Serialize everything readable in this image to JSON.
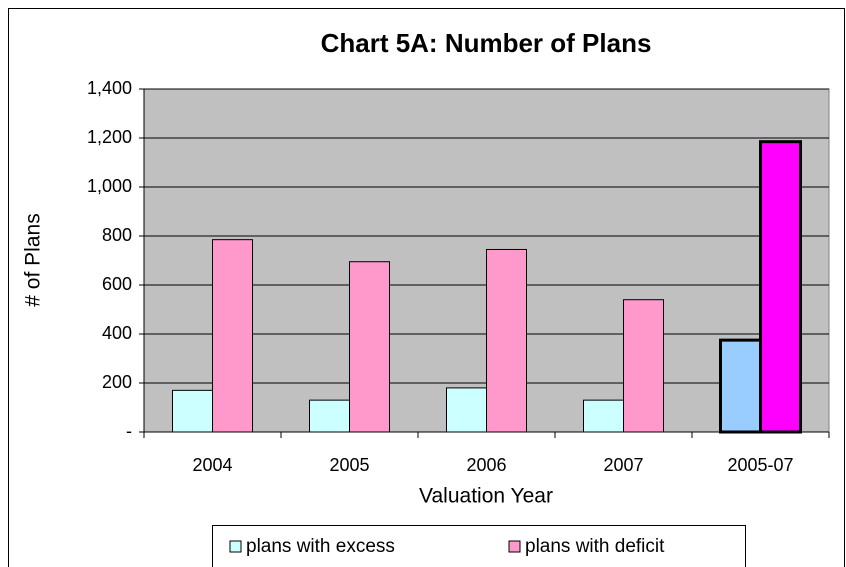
{
  "chart_data": {
    "type": "bar",
    "title": "Chart 5A: Number of Plans",
    "x_label": "Valuation Year",
    "y_label": "# of Plans",
    "categories": [
      "2004",
      "2005",
      "2006",
      "2007",
      "2005-07"
    ],
    "series": [
      {
        "name": "plans with excess",
        "color": "#ccffff",
        "highlight_color": "#99ccff",
        "values": [
          170,
          130,
          180,
          130,
          375
        ]
      },
      {
        "name": "plans with deficit",
        "color": "#ff99cc",
        "highlight_color": "#ff00ff",
        "values": [
          785,
          695,
          745,
          540,
          1185
        ]
      }
    ],
    "highlight_index": 4,
    "ylim": [
      0,
      1400
    ],
    "yticks": [
      {
        "value": 0,
        "label": "-"
      },
      200,
      400,
      600,
      800,
      {
        "value": 1000,
        "label": "1,000"
      },
      {
        "value": 1200,
        "label": "1,200"
      },
      {
        "value": 1400,
        "label": "1,400"
      }
    ],
    "grid": true,
    "plot_background": "#c0c0c0",
    "legend": "bottom"
  }
}
